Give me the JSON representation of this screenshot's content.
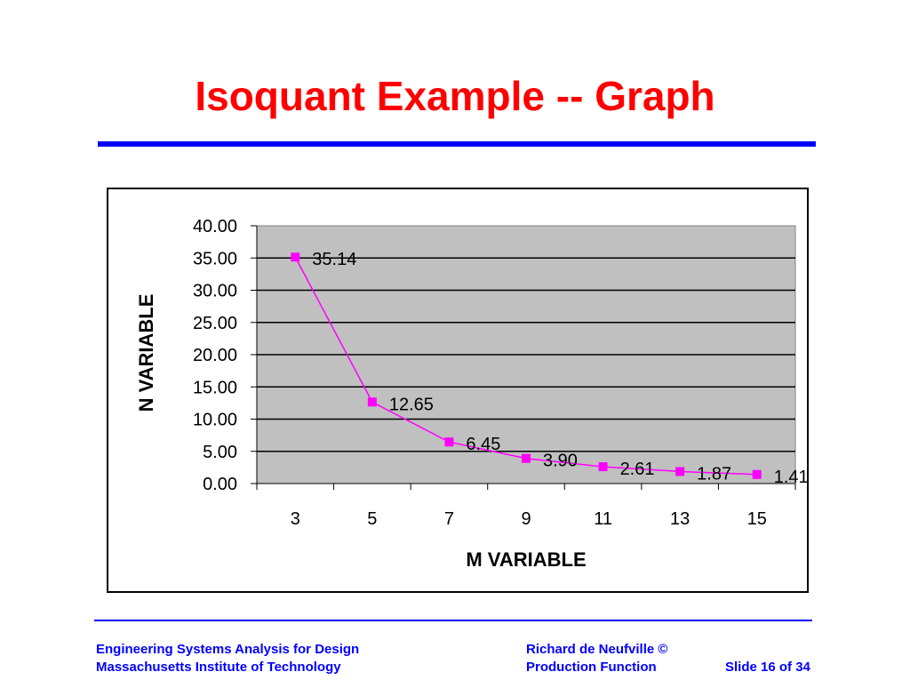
{
  "slide": {
    "title": "Isoquant Example -- Graph"
  },
  "footer": {
    "left_line1": "Engineering Systems Analysis for Design",
    "left_line2": "Massachusetts Institute of Technology",
    "right_line1": "Richard de Neufville  ©",
    "right_line2": "Production Function",
    "slide_number": "Slide 16 of 34"
  },
  "colors": {
    "title": "#ff0000",
    "rule": "#0000ff",
    "footer_text": "#0000ff",
    "plot_background": "#c0c0c0",
    "series": "#ff00ff"
  },
  "chart_data": {
    "type": "line",
    "categories": [
      "3",
      "5",
      "7",
      "9",
      "11",
      "13",
      "15"
    ],
    "series": [
      {
        "values": [
          35.14,
          12.65,
          6.45,
          3.9,
          2.61,
          1.87,
          1.41
        ],
        "labels": [
          "35.14",
          "12.65",
          "6.45",
          "3.90",
          "2.61",
          "1.87",
          "1.41"
        ]
      }
    ],
    "xlabel": "M VARIABLE",
    "ylabel": "N VARIABLE",
    "ylim": [
      0,
      40
    ],
    "yticks": [
      "0.00",
      "5.00",
      "10.00",
      "15.00",
      "20.00",
      "25.00",
      "30.00",
      "35.00",
      "40.00"
    ],
    "grid": true,
    "marker": "square"
  }
}
